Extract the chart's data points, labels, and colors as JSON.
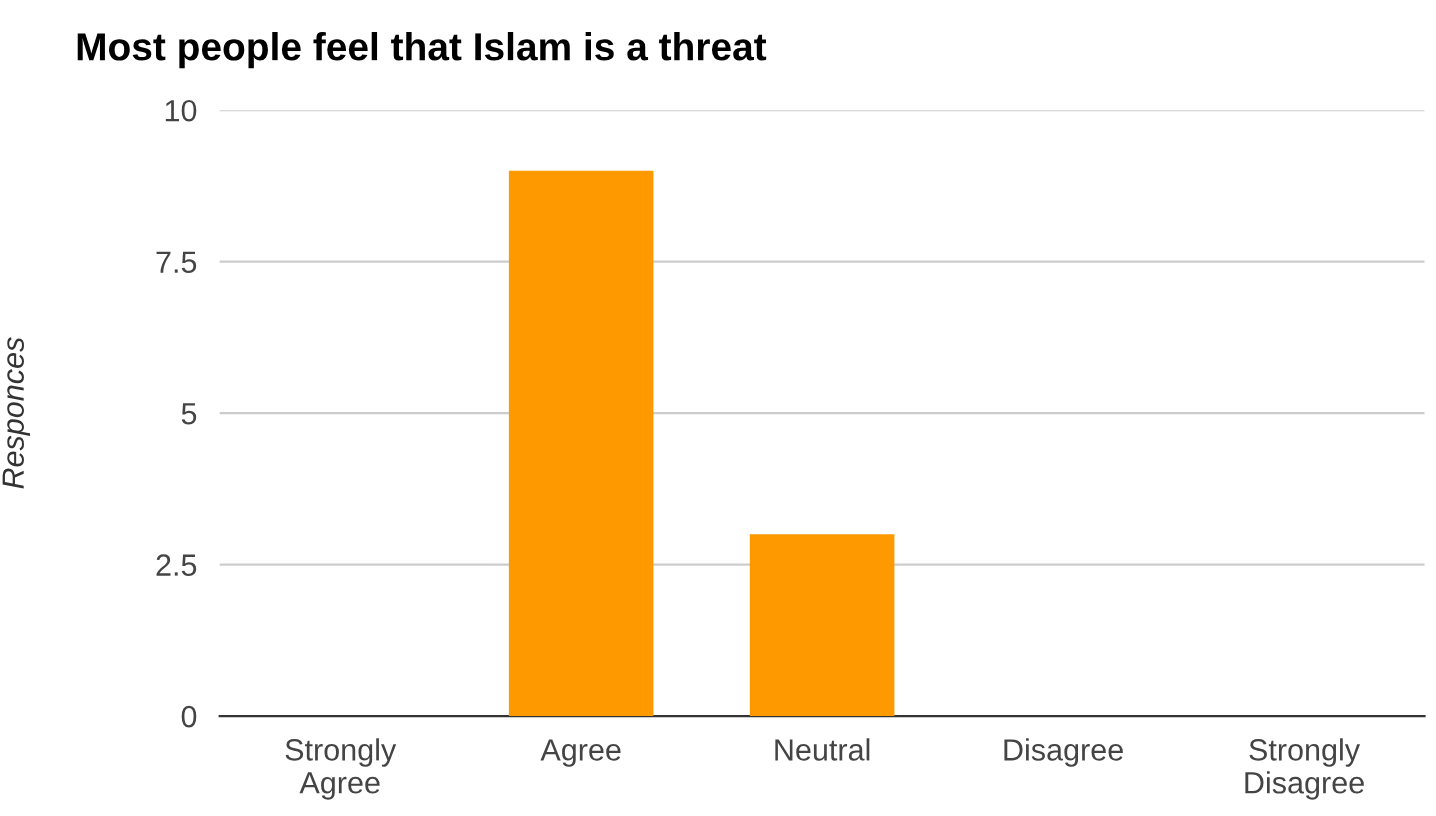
{
  "chart_data": {
    "type": "bar",
    "title": "Most people feel that Islam is a threat",
    "ylabel": "Responces",
    "categories": [
      "Strongly\nAgree",
      "Agree",
      "Neutral",
      "Disagree",
      "Strongly\nDisagree"
    ],
    "values": [
      0,
      9,
      3,
      0,
      0
    ],
    "color": "#ff9900",
    "ylim": [
      0,
      10
    ],
    "yticks": [
      0,
      2.5,
      5,
      7.5,
      10
    ],
    "grid": "y"
  }
}
